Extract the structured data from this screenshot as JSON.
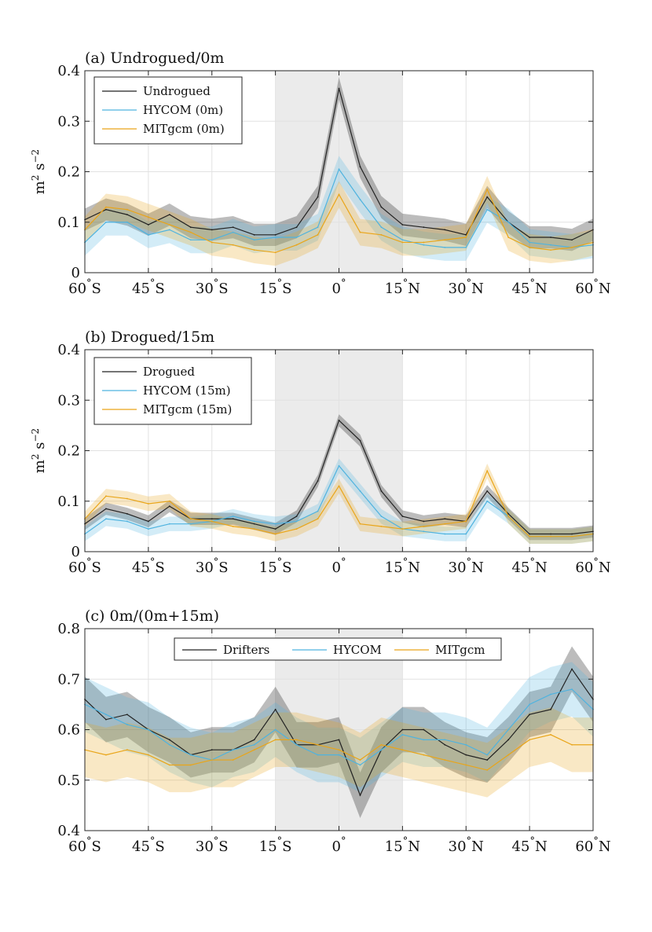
{
  "figure": {
    "xticks": [
      {
        "deg": "60",
        "hemi": "S"
      },
      {
        "deg": "45",
        "hemi": "S"
      },
      {
        "deg": "30",
        "hemi": "S"
      },
      {
        "deg": "15",
        "hemi": "S"
      },
      {
        "deg": "0",
        "hemi": ""
      },
      {
        "deg": "15",
        "hemi": "N"
      },
      {
        "deg": "30",
        "hemi": "N"
      },
      {
        "deg": "45",
        "hemi": "N"
      },
      {
        "deg": "60",
        "hemi": "N"
      }
    ],
    "colors": {
      "black": "#222222",
      "hycom": "#4fb3df",
      "mitgcm": "#e9a519",
      "shade": "#ebebeb"
    }
  },
  "chart_data": [
    {
      "type": "line",
      "title": "(a) Undrogued/0m",
      "ylabel": "m2 s-2",
      "ylim": [
        0,
        0.4
      ],
      "yticks": [
        "0",
        "0.1",
        "0.2",
        "0.3",
        "0.4"
      ],
      "xlim": [
        -60,
        60
      ],
      "shaded_band": [
        -15,
        15
      ],
      "grid": true,
      "legend_position": "top-left",
      "x": [
        -60,
        -55,
        -50,
        -45,
        -40,
        -35,
        -30,
        -25,
        -20,
        -15,
        -10,
        -5,
        0,
        5,
        10,
        15,
        20,
        25,
        30,
        35,
        40,
        45,
        50,
        55,
        60
      ],
      "series": [
        {
          "name": "Undrogued",
          "color": "black",
          "values": [
            0.105,
            0.125,
            0.115,
            0.095,
            0.115,
            0.09,
            0.085,
            0.09,
            0.075,
            0.075,
            0.09,
            0.15,
            0.365,
            0.21,
            0.13,
            0.095,
            0.09,
            0.085,
            0.075,
            0.15,
            0.1,
            0.07,
            0.07,
            0.065,
            0.085
          ]
        },
        {
          "name": "HYCOM (0m)",
          "color": "hycom",
          "values": [
            0.06,
            0.1,
            0.1,
            0.075,
            0.085,
            0.065,
            0.065,
            0.08,
            0.065,
            0.07,
            0.07,
            0.09,
            0.205,
            0.145,
            0.09,
            0.065,
            0.055,
            0.05,
            0.05,
            0.125,
            0.1,
            0.06,
            0.055,
            0.05,
            0.055
          ]
        },
        {
          "name": "MITgcm (0m)",
          "color": "mitgcm",
          "values": [
            0.085,
            0.13,
            0.125,
            0.11,
            0.095,
            0.08,
            0.06,
            0.055,
            0.045,
            0.04,
            0.055,
            0.075,
            0.155,
            0.08,
            0.075,
            0.06,
            0.06,
            0.065,
            0.07,
            0.165,
            0.07,
            0.05,
            0.045,
            0.05,
            0.06
          ]
        }
      ]
    },
    {
      "type": "line",
      "title": "(b) Drogued/15m",
      "ylabel": "m2 s-2",
      "ylim": [
        0,
        0.4
      ],
      "yticks": [
        "0",
        "0.1",
        "0.2",
        "0.3",
        "0.4"
      ],
      "xlim": [
        -60,
        60
      ],
      "shaded_band": [
        -15,
        15
      ],
      "grid": true,
      "legend_position": "top-left",
      "x": [
        -60,
        -55,
        -50,
        -45,
        -40,
        -35,
        -30,
        -25,
        -20,
        -15,
        -10,
        -5,
        0,
        5,
        10,
        15,
        20,
        25,
        30,
        35,
        40,
        45,
        50,
        55,
        60
      ],
      "series": [
        {
          "name": "Drogued",
          "color": "black",
          "values": [
            0.055,
            0.085,
            0.075,
            0.06,
            0.09,
            0.065,
            0.065,
            0.065,
            0.055,
            0.045,
            0.07,
            0.14,
            0.26,
            0.22,
            0.12,
            0.07,
            0.06,
            0.065,
            0.06,
            0.12,
            0.075,
            0.035,
            0.035,
            0.035,
            0.04
          ]
        },
        {
          "name": "HYCOM (15m)",
          "color": "hycom",
          "values": [
            0.035,
            0.065,
            0.06,
            0.045,
            0.055,
            0.055,
            0.06,
            0.07,
            0.06,
            0.055,
            0.06,
            0.08,
            0.17,
            0.12,
            0.07,
            0.045,
            0.04,
            0.035,
            0.035,
            0.1,
            0.07,
            0.03,
            0.03,
            0.03,
            0.035
          ]
        },
        {
          "name": "MITgcm (15m)",
          "color": "mitgcm",
          "values": [
            0.065,
            0.11,
            0.105,
            0.095,
            0.1,
            0.065,
            0.06,
            0.05,
            0.045,
            0.035,
            0.045,
            0.065,
            0.13,
            0.055,
            0.05,
            0.045,
            0.05,
            0.055,
            0.06,
            0.16,
            0.07,
            0.03,
            0.03,
            0.03,
            0.035
          ]
        }
      ]
    },
    {
      "type": "line",
      "title": "(c) 0m/(0m+15m)",
      "ylabel": "",
      "ylim": [
        0.4,
        0.8
      ],
      "yticks": [
        "0.4",
        "0.5",
        "0.6",
        "0.7",
        "0.8"
      ],
      "xlim": [
        -60,
        60
      ],
      "shaded_band": [
        -15,
        15
      ],
      "grid": true,
      "legend_position": "top-center",
      "x": [
        -60,
        -55,
        -50,
        -45,
        -40,
        -35,
        -30,
        -25,
        -20,
        -15,
        -10,
        -5,
        0,
        5,
        10,
        15,
        20,
        25,
        30,
        35,
        40,
        45,
        50,
        55,
        60
      ],
      "series": [
        {
          "name": "Drifters",
          "color": "black",
          "values": [
            0.66,
            0.62,
            0.63,
            0.6,
            0.58,
            0.55,
            0.56,
            0.56,
            0.58,
            0.64,
            0.57,
            0.57,
            0.58,
            0.47,
            0.56,
            0.6,
            0.6,
            0.57,
            0.55,
            0.54,
            0.58,
            0.63,
            0.64,
            0.72,
            0.66
          ]
        },
        {
          "name": "HYCOM",
          "color": "hycom",
          "values": [
            0.65,
            0.63,
            0.61,
            0.6,
            0.57,
            0.55,
            0.54,
            0.56,
            0.57,
            0.6,
            0.57,
            0.55,
            0.55,
            0.53,
            0.56,
            0.59,
            0.58,
            0.58,
            0.57,
            0.55,
            0.6,
            0.65,
            0.67,
            0.68,
            0.64
          ]
        },
        {
          "name": "MITgcm",
          "color": "mitgcm",
          "values": [
            0.56,
            0.55,
            0.56,
            0.55,
            0.53,
            0.53,
            0.54,
            0.54,
            0.56,
            0.58,
            0.58,
            0.57,
            0.56,
            0.54,
            0.57,
            0.56,
            0.55,
            0.54,
            0.53,
            0.52,
            0.55,
            0.58,
            0.59,
            0.57,
            0.57
          ]
        }
      ]
    }
  ]
}
